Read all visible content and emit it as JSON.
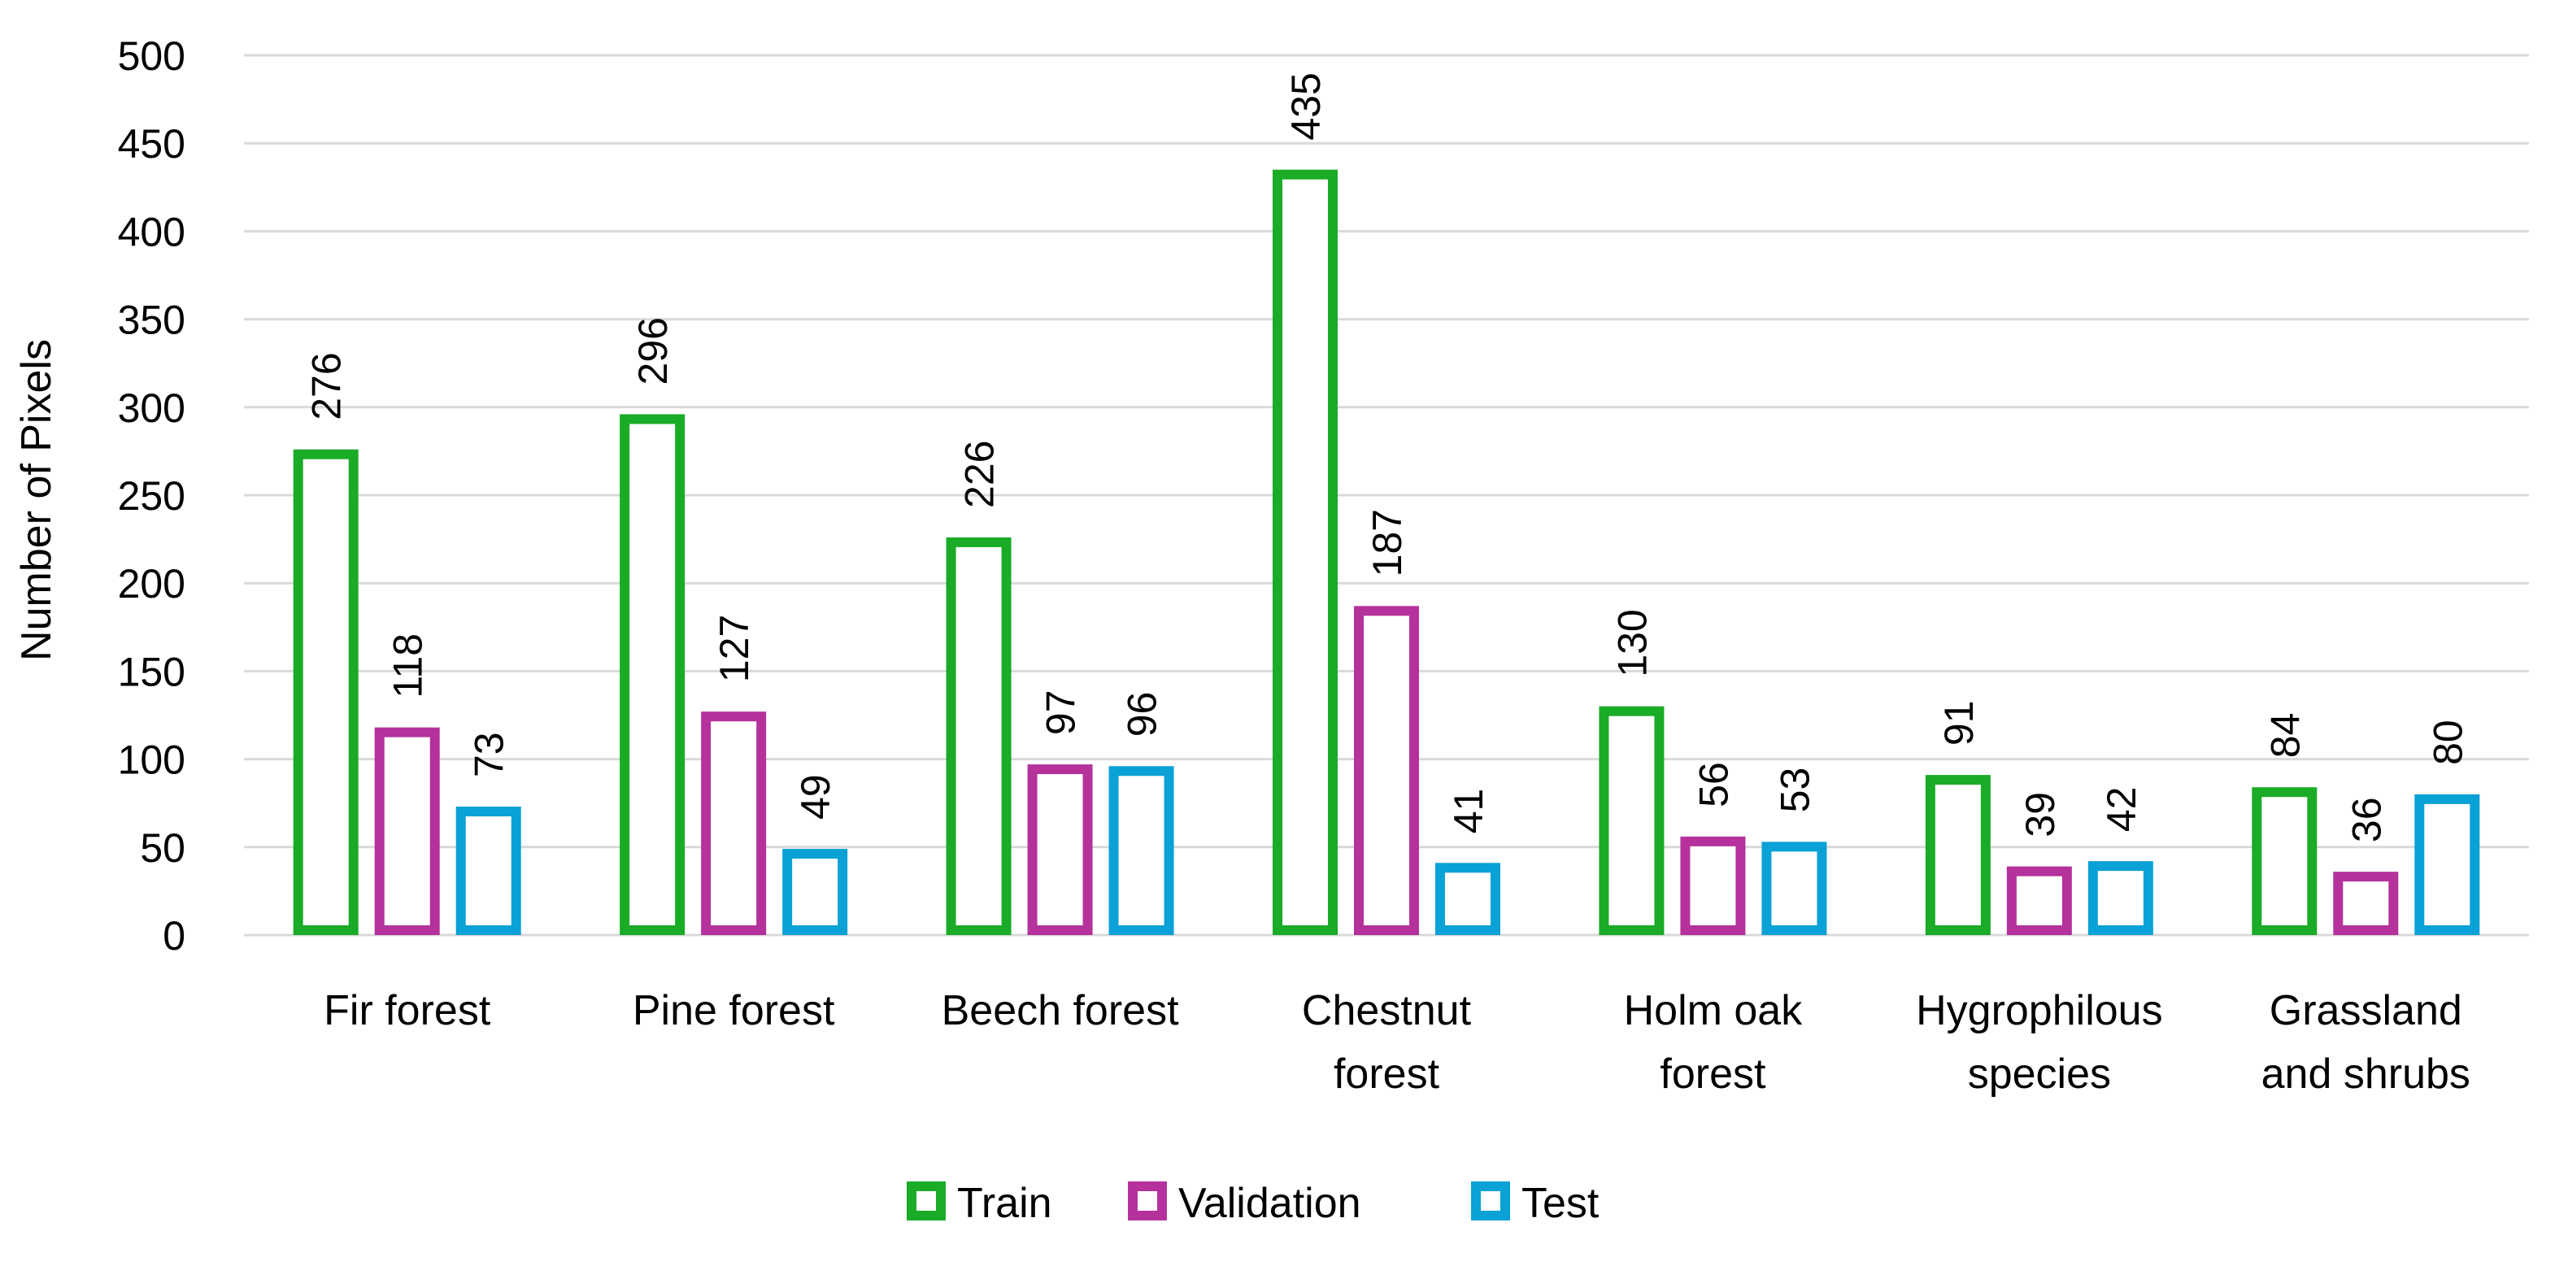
{
  "chart_data": {
    "type": "bar",
    "title": "",
    "xlabel": "",
    "ylabel": "Number of Pixels",
    "ylim": [
      0,
      500
    ],
    "yticks": [
      0,
      50,
      100,
      150,
      200,
      250,
      300,
      350,
      400,
      450,
      500
    ],
    "grid": true,
    "legend_position": "bottom",
    "categories": [
      [
        "Fir forest"
      ],
      [
        "Pine forest"
      ],
      [
        "Beech forest"
      ],
      [
        "Chestnut",
        "forest"
      ],
      [
        "Holm oak",
        "forest"
      ],
      [
        "Hygrophilous",
        "species"
      ],
      [
        "Grassland",
        "and shrubs"
      ]
    ],
    "series": [
      {
        "name": "Train",
        "color": "#1aab27",
        "values": [
          276,
          296,
          226,
          435,
          130,
          91,
          84
        ]
      },
      {
        "name": "Validation",
        "color": "#b5319b",
        "values": [
          118,
          127,
          97,
          187,
          56,
          39,
          36
        ]
      },
      {
        "name": "Test",
        "color": "#0aa1d6",
        "values": [
          73,
          49,
          96,
          41,
          53,
          42,
          80
        ]
      }
    ]
  }
}
